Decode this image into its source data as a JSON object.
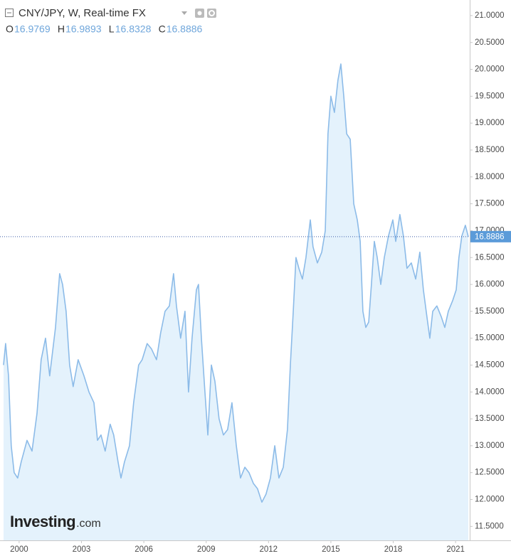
{
  "chart_data": {
    "type": "area",
    "title": "CNY/JPY, W, Real-time FX",
    "ohlc": [
      {
        "label": "O",
        "value": 16.9769
      },
      {
        "label": "H",
        "value": 16.9893
      },
      {
        "label": "L",
        "value": 16.8328
      },
      {
        "label": "C",
        "value": 16.8886
      }
    ],
    "last_price": 16.8886,
    "logo": "Investing",
    "logo_suffix": ".com",
    "xlim": [
      1999.08,
      2021.68
    ],
    "xticks": [
      2000,
      2003,
      2006,
      2009,
      2012,
      2015,
      2018,
      2021
    ],
    "ylim": [
      11.24,
      21.29
    ],
    "yticks": [
      {
        "value": 11.5,
        "label": "11.5000"
      },
      {
        "value": 12.0,
        "label": "12.0000"
      },
      {
        "value": 12.5,
        "label": "12.5000"
      },
      {
        "value": 13.0,
        "label": "13.0000"
      },
      {
        "value": 13.5,
        "label": "13.5000"
      },
      {
        "value": 14.0,
        "label": "14.0000"
      },
      {
        "value": 14.5,
        "label": "14.5000"
      },
      {
        "value": 15.0,
        "label": "15.0000"
      },
      {
        "value": 15.5,
        "label": "15.5000"
      },
      {
        "value": 16.0,
        "label": "16.0000"
      },
      {
        "value": 16.5,
        "label": "16.5000"
      },
      {
        "value": 17.0,
        "label": "17.0000"
      },
      {
        "value": 17.5,
        "label": "17.5000"
      },
      {
        "value": 18.0,
        "label": "18.0000"
      },
      {
        "value": 18.5,
        "label": "18.5000"
      },
      {
        "value": 19.0,
        "label": "19.0000"
      },
      {
        "value": 19.5,
        "label": "19.5000"
      },
      {
        "value": 20.0,
        "label": "20.0000"
      },
      {
        "value": 20.5,
        "label": "20.5000"
      },
      {
        "value": 21.0,
        "label": "21.0000"
      }
    ],
    "line_color": "#8cbbe8",
    "fill_color": "#e4f2fc",
    "x": [
      1999.25,
      1999.35,
      1999.49,
      1999.62,
      1999.76,
      1999.93,
      2000.1,
      2000.38,
      2000.62,
      2000.86,
      2001.06,
      2001.27,
      2001.47,
      2001.75,
      2001.95,
      2002.09,
      2002.26,
      2002.43,
      2002.6,
      2002.84,
      2003.12,
      2003.36,
      2003.6,
      2003.77,
      2003.94,
      2004.14,
      2004.38,
      2004.55,
      2004.76,
      2004.9,
      2005.07,
      2005.31,
      2005.51,
      2005.75,
      2005.92,
      2006.16,
      2006.37,
      2006.61,
      2006.81,
      2007.02,
      2007.23,
      2007.43,
      2007.57,
      2007.77,
      2007.98,
      2008.15,
      2008.32,
      2008.53,
      2008.63,
      2008.77,
      2008.94,
      2009.08,
      2009.25,
      2009.42,
      2009.62,
      2009.83,
      2010.03,
      2010.24,
      2010.45,
      2010.65,
      2010.86,
      2011.06,
      2011.27,
      2011.47,
      2011.68,
      2011.88,
      2012.09,
      2012.3,
      2012.5,
      2012.71,
      2012.91,
      2013.05,
      2013.19,
      2013.32,
      2013.46,
      2013.63,
      2013.8,
      2014.01,
      2014.14,
      2014.35,
      2014.56,
      2014.73,
      2014.86,
      2015.0,
      2015.17,
      2015.34,
      2015.48,
      2015.62,
      2015.76,
      2015.93,
      2016.1,
      2016.27,
      2016.41,
      2016.54,
      2016.68,
      2016.82,
      2016.95,
      2017.09,
      2017.23,
      2017.4,
      2017.57,
      2017.77,
      2017.98,
      2018.12,
      2018.32,
      2018.49,
      2018.66,
      2018.87,
      2019.08,
      2019.28,
      2019.45,
      2019.62,
      2019.76,
      2019.9,
      2020.1,
      2020.31,
      2020.48,
      2020.65,
      2020.86,
      2021.03,
      2021.16,
      2021.3,
      2021.47,
      2021.61
    ],
    "series": [
      {
        "name": "CNY/JPY",
        "values": [
          14.5,
          14.9,
          14.3,
          13.0,
          12.5,
          12.4,
          12.7,
          13.1,
          12.9,
          13.6,
          14.6,
          15.0,
          14.3,
          15.2,
          16.2,
          16.0,
          15.5,
          14.5,
          14.1,
          14.6,
          14.3,
          14.0,
          13.8,
          13.1,
          13.2,
          12.9,
          13.4,
          13.2,
          12.7,
          12.4,
          12.7,
          13.0,
          13.8,
          14.5,
          14.6,
          14.9,
          14.8,
          14.6,
          15.1,
          15.5,
          15.6,
          16.2,
          15.6,
          15.0,
          15.5,
          14.0,
          15.0,
          15.9,
          16.0,
          15.0,
          14.0,
          13.2,
          14.5,
          14.2,
          13.5,
          13.2,
          13.3,
          13.8,
          13.0,
          12.4,
          12.6,
          12.5,
          12.3,
          12.2,
          11.95,
          12.1,
          12.4,
          13.0,
          12.4,
          12.6,
          13.3,
          14.5,
          15.5,
          16.5,
          16.3,
          16.1,
          16.5,
          17.2,
          16.7,
          16.4,
          16.6,
          17.0,
          18.8,
          19.5,
          19.2,
          19.8,
          20.1,
          19.5,
          18.8,
          18.7,
          17.5,
          17.2,
          16.8,
          15.5,
          15.2,
          15.3,
          16.0,
          16.8,
          16.5,
          16.0,
          16.5,
          16.9,
          17.2,
          16.8,
          17.3,
          16.9,
          16.3,
          16.4,
          16.1,
          16.6,
          15.9,
          15.4,
          15.0,
          15.5,
          15.6,
          15.4,
          15.2,
          15.5,
          15.7,
          15.9,
          16.5,
          16.9,
          17.1,
          16.8886
        ]
      }
    ]
  }
}
